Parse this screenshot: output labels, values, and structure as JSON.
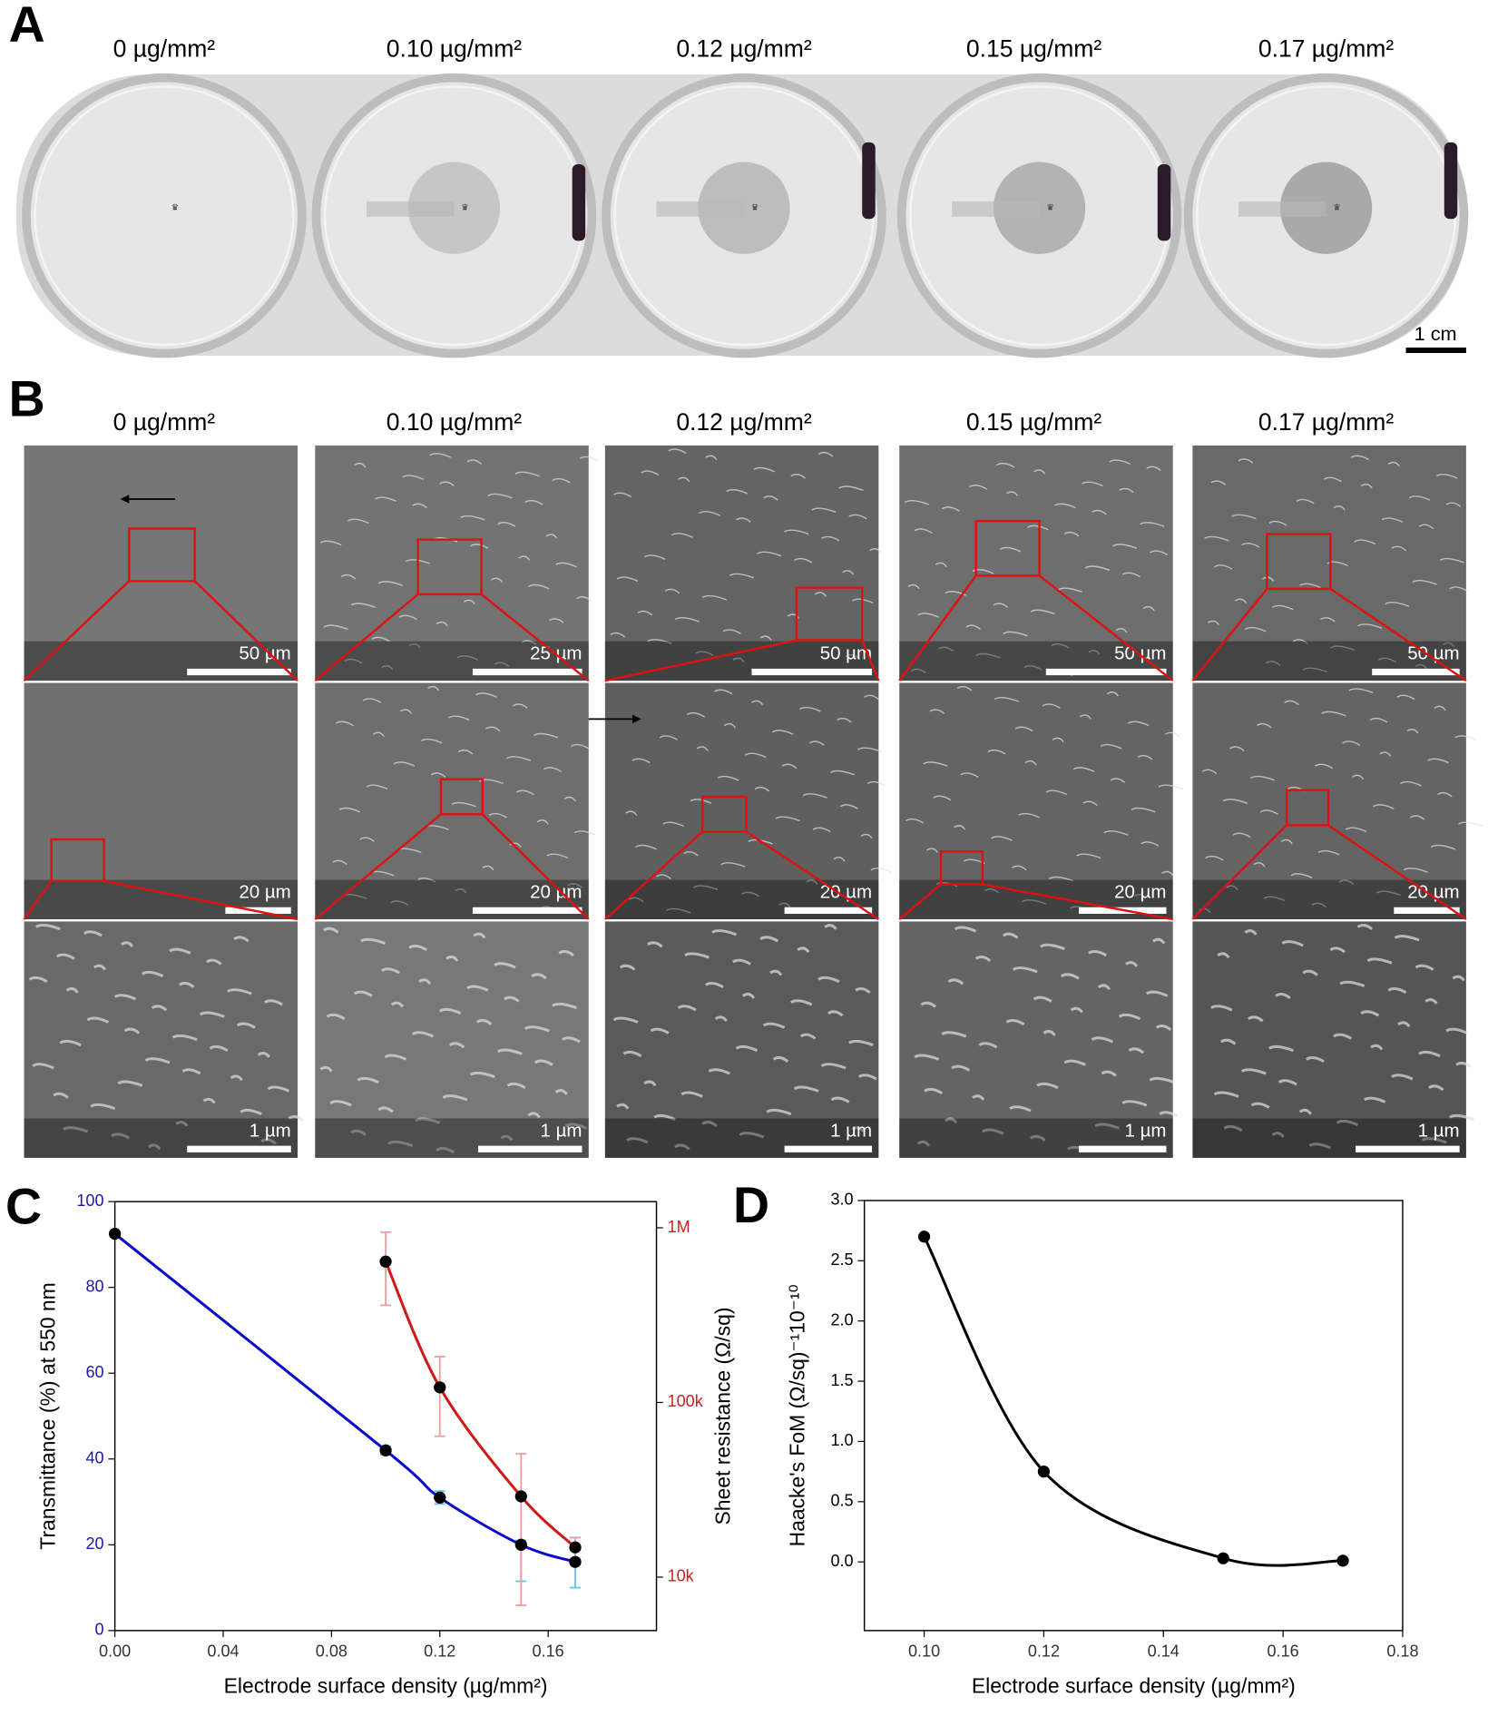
{
  "panels": {
    "A": {
      "label": "A",
      "headings": [
        "0 µg/mm²",
        "0.10 µg/mm²",
        "0.12 µg/mm²",
        "0.15 µg/mm²",
        "0.17 µg/mm²"
      ],
      "scale_label": "1 cm"
    },
    "B": {
      "label": "B",
      "headings": [
        "0 µg/mm²",
        "0.10 µg/mm²",
        "0.12 µg/mm²",
        "0.15 µg/mm²",
        "0.17 µg/mm²"
      ],
      "scale_labels": [
        [
          "50 µm",
          "25 µm",
          "50 µm",
          "50 µm",
          "50 µm"
        ],
        [
          "20 µm",
          "20 µm",
          "20 µm",
          "20 µm",
          "20 µm"
        ],
        [
          "1 µm",
          "1 µm",
          "1 µm",
          "1 µm",
          "1 µm"
        ]
      ]
    }
  },
  "chart_data": [
    {
      "type": "line",
      "label": "C",
      "x_label": "Electrode surface density (µg/mm²)",
      "y_label": "Transmittance (%) at 550 nm",
      "y2_label": "Sheet resistance (Ω/sq)",
      "x": [
        0,
        0.1,
        0.12,
        0.15,
        0.17
      ],
      "xlim": [
        0,
        0.2
      ],
      "xticks": [
        {
          "value": 0,
          "label": "0.00"
        },
        0.04,
        0.08,
        0.12,
        0.16
      ],
      "ylim": [
        0,
        100
      ],
      "yticks": [
        0,
        20,
        40,
        60,
        80,
        100
      ],
      "y2lim": [
        4944,
        1412000
      ],
      "y2_log": true,
      "y2ticks": [
        {
          "value": 10000,
          "label": "10k"
        },
        {
          "value": 100000,
          "label": "100k"
        },
        {
          "value": 1000000,
          "label": "1M"
        }
      ],
      "axis_color": "#1a1aa6",
      "axis2_color": "#cc1f1f",
      "marker_color": "#000000",
      "series": [
        {
          "name": "Transmittance",
          "axis": "y",
          "color": "#0a0acc",
          "error_color": "#5fc8e8",
          "values": [
            92.5,
            42,
            31,
            20,
            16
          ],
          "error_low": [
            null,
            41,
            29.5,
            11.5,
            10
          ],
          "error_high": [
            null,
            43,
            32.5,
            21,
            21.7
          ]
        },
        {
          "name": "Sheet resistance",
          "axis": "y2",
          "color": "#d01818",
          "error_color": "#e8a0a0",
          "values": [
            null,
            640000,
            122000,
            29000,
            14800
          ],
          "error_low": [
            null,
            360000,
            64000,
            6900,
            12800
          ],
          "error_high": [
            null,
            944000,
            183000,
            50800,
            16800
          ]
        }
      ]
    },
    {
      "type": "line",
      "label": "D",
      "x_label": "Electrode surface density (µg/mm²)",
      "y_label": "Haacke's FoM (Ω/sq)⁻¹10⁻¹⁰",
      "x": [
        0.1,
        0.12,
        0.15,
        0.17
      ],
      "values": [
        2.7,
        0.75,
        0.03,
        0.01
      ],
      "color": "#000000",
      "marker_color": "#000000",
      "xlim": [
        0.09,
        0.18
      ],
      "xticks": [
        {
          "value": 0.1,
          "label": "0.10"
        },
        0.12,
        0.14,
        0.16,
        0.18
      ],
      "ylim": [
        -0.57,
        3.0
      ],
      "yticks": [
        {
          "value": 0,
          "label": "0.0"
        },
        0.5,
        {
          "value": 1,
          "label": "1.0"
        },
        1.5,
        {
          "value": 2,
          "label": "2.0"
        },
        2.5,
        {
          "value": 3,
          "label": "3.0"
        }
      ]
    }
  ]
}
